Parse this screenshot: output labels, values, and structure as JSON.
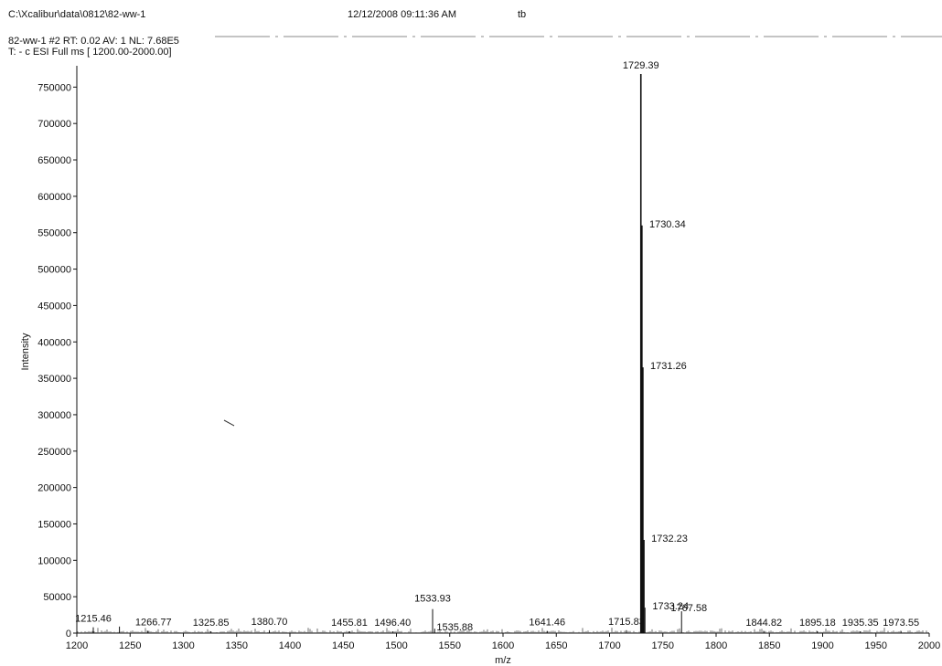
{
  "header": {
    "file_path": "C:\\Xcalibur\\data\\0812\\82-ww-1",
    "timestamp": "12/12/2008 09:11:36 AM",
    "user": "tb",
    "scan_info": "82-ww-1 #2   RT: 0.02   AV: 1   NL: 7.68E5",
    "scan_filter": "T:  - c ESI Full ms [ 1200.00-2000.00]"
  },
  "chart_data": {
    "type": "line",
    "xlabel": "m/z",
    "ylabel": "Intensity",
    "xlim": [
      1200,
      2000
    ],
    "ylim": [
      0,
      768000
    ],
    "x_ticks": [
      1200,
      1250,
      1300,
      1350,
      1400,
      1450,
      1500,
      1550,
      1600,
      1650,
      1700,
      1750,
      1800,
      1850,
      1900,
      1950,
      2000
    ],
    "y_ticks": [
      0,
      50000,
      100000,
      150000,
      200000,
      250000,
      300000,
      350000,
      400000,
      450000,
      500000,
      550000,
      600000,
      650000,
      700000,
      750000
    ],
    "grid": false,
    "peaks": [
      {
        "x": 1215.46,
        "y": 8000,
        "label": "1215.46"
      },
      {
        "x": 1240.0,
        "y": 9000,
        "label": ""
      },
      {
        "x": 1266.77,
        "y": 3000,
        "label": "1266.77"
      },
      {
        "x": 1325.85,
        "y": 2500,
        "label": "1325.85"
      },
      {
        "x": 1380.7,
        "y": 4000,
        "label": "1380.70"
      },
      {
        "x": 1455.81,
        "y": 2500,
        "label": "1455.81"
      },
      {
        "x": 1496.4,
        "y": 2500,
        "label": "1496.40"
      },
      {
        "x": 1533.93,
        "y": 33000,
        "label": "1533.93"
      },
      {
        "x": 1535.88,
        "y": 6000,
        "label": "1535.88"
      },
      {
        "x": 1641.46,
        "y": 3000,
        "label": "1641.46"
      },
      {
        "x": 1715.83,
        "y": 4000,
        "label": "1715.83"
      },
      {
        "x": 1729.39,
        "y": 768000,
        "label": "1729.39"
      },
      {
        "x": 1730.34,
        "y": 560000,
        "label": "1730.34"
      },
      {
        "x": 1731.26,
        "y": 365000,
        "label": "1731.26"
      },
      {
        "x": 1732.23,
        "y": 128000,
        "label": "1732.23"
      },
      {
        "x": 1733.24,
        "y": 35000,
        "label": "1733.24"
      },
      {
        "x": 1767.58,
        "y": 30000,
        "label": "1767.58"
      },
      {
        "x": 1844.82,
        "y": 2500,
        "label": "1844.82"
      },
      {
        "x": 1895.18,
        "y": 2500,
        "label": "1895.18"
      },
      {
        "x": 1935.35,
        "y": 2500,
        "label": "1935.35"
      },
      {
        "x": 1973.55,
        "y": 2500,
        "label": "1973.55"
      }
    ]
  }
}
